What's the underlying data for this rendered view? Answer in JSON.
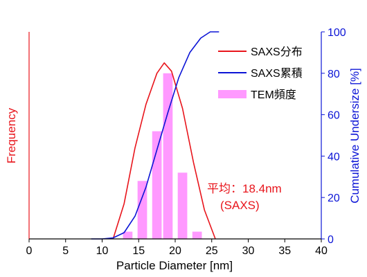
{
  "chart_data": {
    "type": "bar+line",
    "xlabel": "Particle Diameter [nm]",
    "ylabel_left": "Frequency",
    "ylabel_right": "Cumulative Undersize [%]",
    "xlim": [
      0,
      40
    ],
    "x_ticks": [
      0,
      5,
      10,
      15,
      20,
      25,
      30,
      35,
      40
    ],
    "y2lim": [
      0,
      100
    ],
    "y2_ticks": [
      0,
      20,
      40,
      60,
      80,
      100
    ],
    "grid": false,
    "legend_position": "top-right",
    "colors": {
      "saxs_distribution": "#e8141b",
      "saxs_cumulative": "#0b14d6",
      "tem_frequency": "#ff99ff",
      "left_axis": "#e8141b",
      "right_axis": "#0b14d6"
    },
    "series": [
      {
        "name": "SAXS分布",
        "kind": "line",
        "axis": "left",
        "x": [
          11.5,
          13,
          14.5,
          16,
          17.5,
          18.5,
          19.5,
          21,
          22.5,
          24,
          25.5
        ],
        "y": [
          0,
          17,
          44,
          65,
          80,
          85,
          81,
          63,
          37,
          14,
          0
        ]
      },
      {
        "name": "SAXS累積",
        "kind": "line",
        "axis": "right",
        "x": [
          8.5,
          10,
          11.5,
          13,
          14.5,
          16,
          17.5,
          19,
          20.5,
          22,
          23.5,
          24.8,
          26
        ],
        "y": [
          0,
          0,
          0.5,
          3,
          11,
          25,
          43,
          61,
          78,
          90,
          97,
          100,
          100
        ]
      },
      {
        "name": "TEM頻度",
        "kind": "bar",
        "axis": "left",
        "bar_width": 1.3,
        "x": [
          13.5,
          15.5,
          17.5,
          19,
          21,
          23
        ],
        "y": [
          3.5,
          28,
          52,
          80,
          32,
          3.5
        ]
      }
    ],
    "annotation": {
      "lines": [
        "平均：18.4nm",
        "(SAXS)"
      ],
      "color": "#e8141b"
    }
  }
}
